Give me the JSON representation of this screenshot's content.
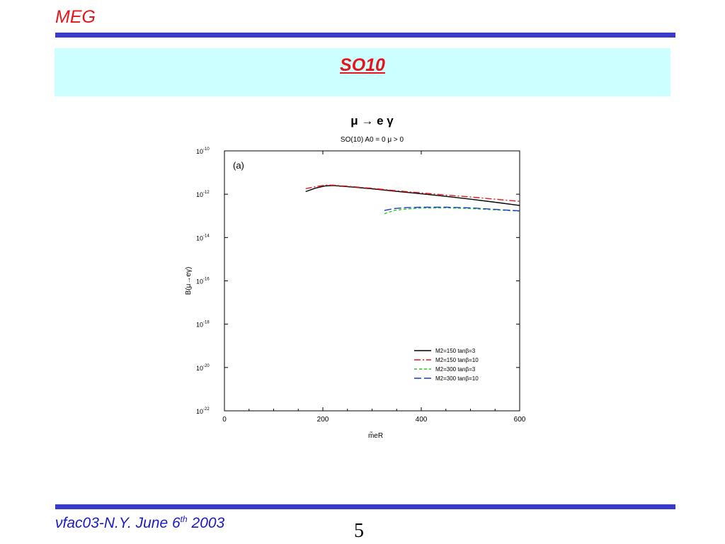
{
  "header": {
    "brand": "MEG"
  },
  "slide": {
    "title": "SO10"
  },
  "footer": {
    "nu": "ν",
    "event": "fac03-N.Y. June 6",
    "sup": "th",
    "year": " 2003",
    "page_number": "5"
  },
  "colors": {
    "accent_red": "#e8141c",
    "rule_blue": "#3a3acb",
    "band_cyan": "#ccffff",
    "footer_blue": "#1a1acc"
  },
  "chart_data": {
    "type": "line",
    "title": "μ → e γ",
    "subtitle": "SO(10)  A0 = 0  μ > 0",
    "panel_label": "(a)",
    "xlabel": "m̃eR",
    "ylabel": "B(μ→eγ)",
    "xlim": [
      0,
      600
    ],
    "ylim_log10": [
      -22,
      -10
    ],
    "y_scale": "log",
    "x_ticks": [
      0,
      200,
      400,
      600
    ],
    "x_tick_labels": [
      "0",
      "200",
      "400",
      "600"
    ],
    "y_ticks_log10": [
      -10,
      -12,
      -14,
      -16,
      -18,
      -20,
      -22
    ],
    "y_tick_labels": [
      {
        "base": "10",
        "exp": "-10"
      },
      {
        "base": "10",
        "exp": "-12"
      },
      {
        "base": "10",
        "exp": "-14"
      },
      {
        "base": "10",
        "exp": "-16"
      },
      {
        "base": "10",
        "exp": "-18"
      },
      {
        "base": "10",
        "exp": "-20"
      },
      {
        "base": "10",
        "exp": "-22"
      }
    ],
    "legend_position": "bottom-right",
    "series": [
      {
        "name": "M2=150 tanβ=3",
        "color": "#000000",
        "dash": "solid",
        "x": [
          165,
          185,
          205,
          220,
          260,
          300,
          350,
          400,
          450,
          500,
          550,
          600
        ],
        "y_log10": [
          -11.88,
          -11.72,
          -11.62,
          -11.6,
          -11.67,
          -11.75,
          -11.87,
          -11.98,
          -12.1,
          -12.23,
          -12.37,
          -12.52
        ]
      },
      {
        "name": "M2=150 tanβ=10",
        "color": "#e8141c",
        "dash": "dash-dot",
        "x": [
          165,
          185,
          205,
          220,
          260,
          300,
          350,
          400,
          450,
          500,
          550,
          600
        ],
        "y_log10": [
          -11.75,
          -11.65,
          -11.58,
          -11.58,
          -11.65,
          -11.73,
          -11.84,
          -11.94,
          -12.04,
          -12.13,
          -12.23,
          -12.33
        ]
      },
      {
        "name": "M2=300 tanβ=3",
        "color": "#22cc22",
        "dash": "dashed",
        "x": [
          325,
          345,
          370,
          400,
          450,
          500,
          550,
          600
        ],
        "y_log10": [
          -12.9,
          -12.75,
          -12.68,
          -12.64,
          -12.63,
          -12.66,
          -12.72,
          -12.78
        ]
      },
      {
        "name": "M2=300 tanβ=10",
        "color": "#1a3acc",
        "dash": "long-dash",
        "x": [
          325,
          345,
          370,
          400,
          450,
          500,
          550,
          600
        ],
        "y_log10": [
          -12.75,
          -12.66,
          -12.62,
          -12.6,
          -12.6,
          -12.63,
          -12.7,
          -12.77
        ]
      }
    ]
  }
}
